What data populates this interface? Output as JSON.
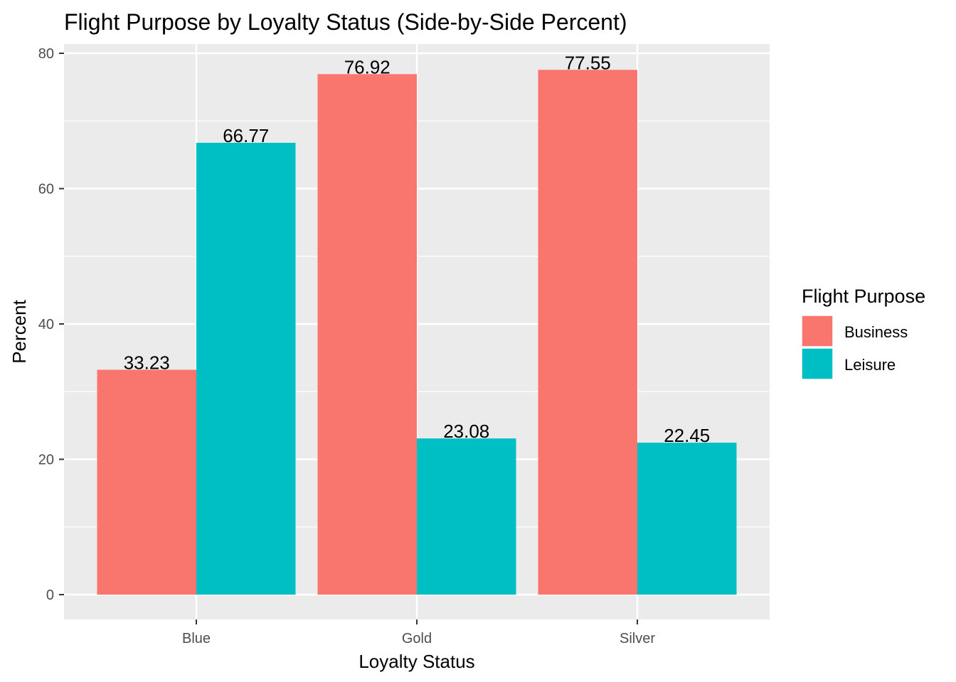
{
  "chart_data": {
    "type": "bar",
    "title": "Flight Purpose by Loyalty Status (Side-by-Side Percent)",
    "xlabel": "Loyalty Status",
    "ylabel": "Percent",
    "categories": [
      "Blue",
      "Gold",
      "Silver"
    ],
    "series": [
      {
        "name": "Business",
        "color": "#F8766D",
        "values": [
          33.23,
          76.92,
          77.55
        ],
        "labels": [
          "33.23",
          "76.92",
          "77.55"
        ]
      },
      {
        "name": "Leisure",
        "color": "#00BFC4",
        "values": [
          66.77,
          23.08,
          22.45
        ],
        "labels": [
          "66.77",
          "23.08",
          "22.45"
        ]
      }
    ],
    "ylim": [
      -4.45,
      85.02
    ],
    "yticks": [
      0,
      20,
      40,
      60,
      80
    ],
    "ytick_labels": [
      "0",
      "20",
      "40",
      "60",
      "80"
    ],
    "grid": true,
    "legend": {
      "title": "Flight Purpose",
      "placement": "right"
    }
  }
}
